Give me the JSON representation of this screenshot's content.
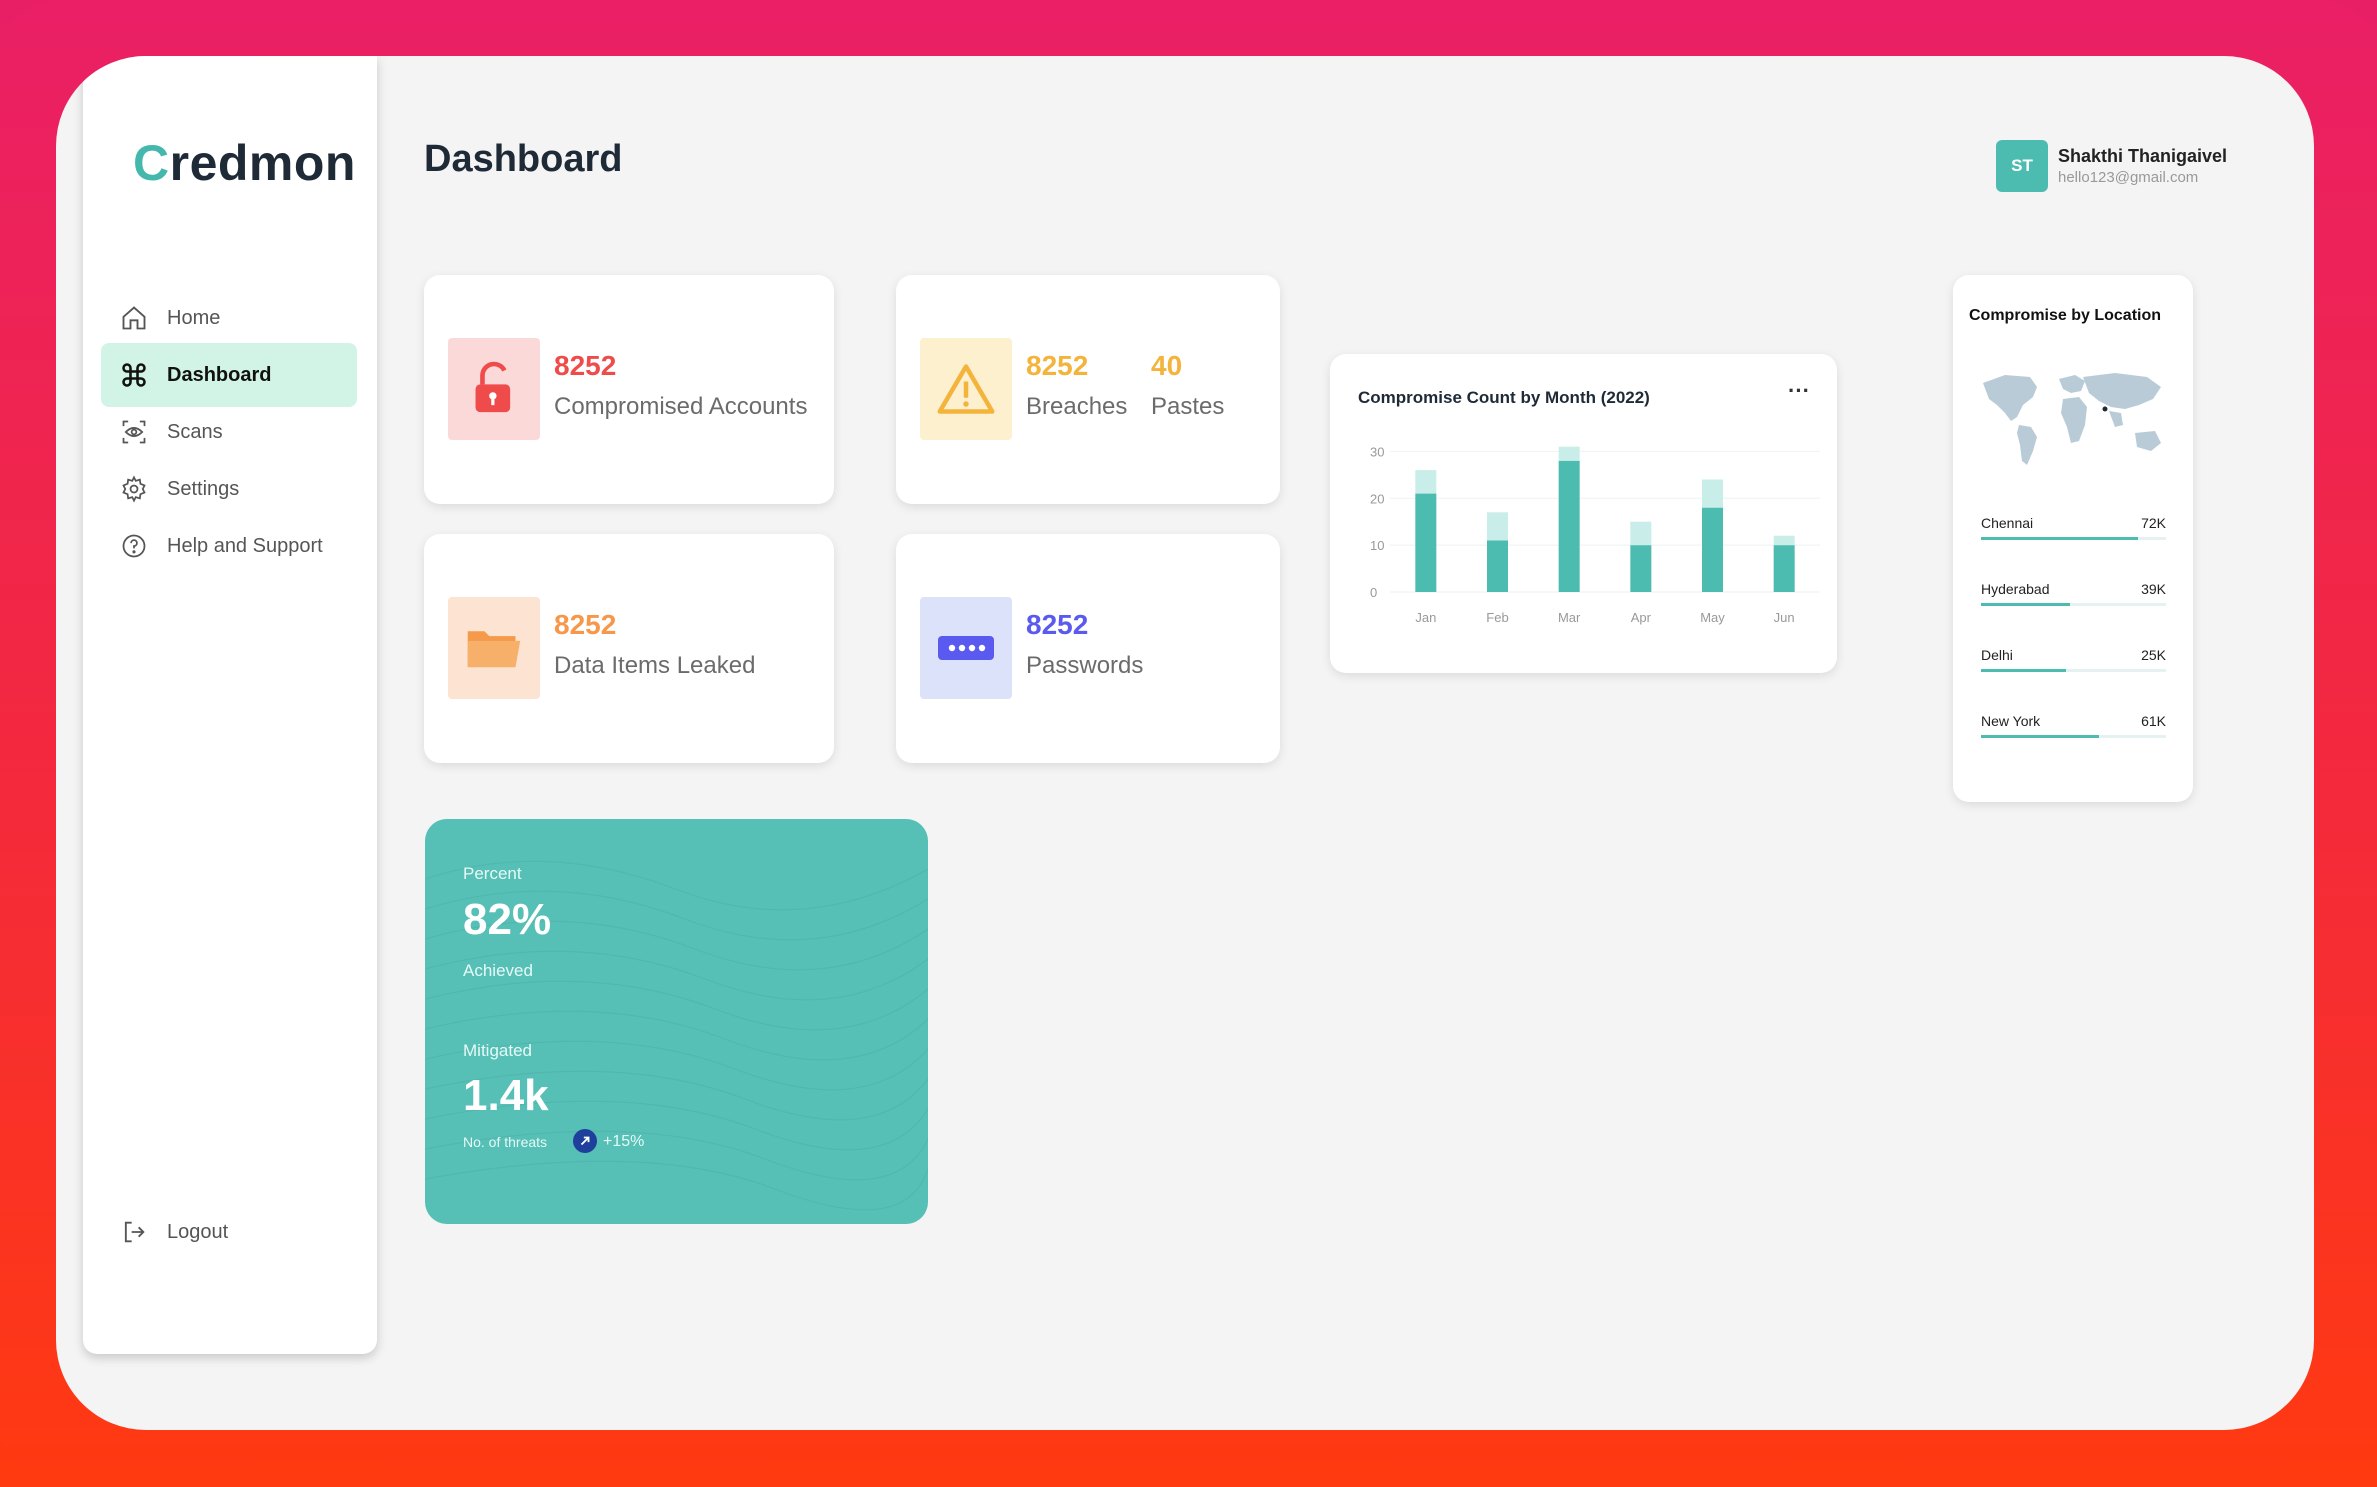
{
  "app": {
    "logo_first": "C",
    "logo_rest": "redmon"
  },
  "header": {
    "title": "Dashboard"
  },
  "user": {
    "initials": "ST",
    "name": "Shakthi Thanigaivel",
    "email": "hello123@gmail.com"
  },
  "sidebar": {
    "items": [
      {
        "label": "Home",
        "icon": "home-icon",
        "active": false
      },
      {
        "label": "Dashboard",
        "icon": "command-icon",
        "active": true
      },
      {
        "label": "Scans",
        "icon": "scan-eye-icon",
        "active": false
      },
      {
        "label": "Settings",
        "icon": "gear-icon",
        "active": false
      },
      {
        "label": "Help and Support",
        "icon": "help-icon",
        "active": false
      }
    ],
    "logout": {
      "label": "Logout",
      "icon": "logout-icon"
    }
  },
  "stats": {
    "compromised": {
      "value": "8252",
      "label": "Compromised Accounts",
      "icon": "unlock-icon",
      "color": "#ef4b4b"
    },
    "breaches": {
      "value": "8252",
      "label": "Breaches",
      "icon": "warning-icon",
      "color": "#f4b43c"
    },
    "pastes": {
      "value": "40",
      "label": "Pastes",
      "color": "#f4b43c"
    },
    "leaked": {
      "value": "8252",
      "label": "Data Items Leaked",
      "icon": "folder-icon",
      "color": "#f7974a"
    },
    "passwords": {
      "value": "8252",
      "label": "Passwords",
      "icon": "password-icon",
      "color": "#5a5af0"
    }
  },
  "progress_card": {
    "percent_label": "Percent",
    "percent_value": "82%",
    "achieved_label": "Achieved",
    "mitigated_label": "Mitigated",
    "mitigated_value": "1.4k",
    "threats_label": "No. of threats",
    "change": "+15%"
  },
  "chart_data": {
    "type": "bar",
    "title": "Compromise Count by Month (2022)",
    "categories": [
      "Jan",
      "Feb",
      "Mar",
      "Apr",
      "May",
      "Jun"
    ],
    "series": [
      {
        "values": [
          21,
          11,
          28,
          10,
          18,
          10
        ]
      },
      {
        "values": [
          5,
          6,
          3,
          5,
          6,
          2
        ]
      }
    ],
    "stacked": true,
    "yticks": [
      "0",
      "10",
      "20",
      "30"
    ],
    "ylim": [
      0,
      32
    ],
    "grid": true,
    "colors": [
      "#4dbcb0",
      "#c9ede8"
    ],
    "more_label": "···"
  },
  "locations": {
    "title": "Compromise by Location",
    "map_icon": "world-map-icon",
    "items": [
      {
        "name": "Chennai",
        "value": "72K",
        "fraction": 0.85
      },
      {
        "name": "Hyderabad",
        "value": "39K",
        "fraction": 0.48
      },
      {
        "name": "Delhi",
        "value": "25K",
        "fraction": 0.46
      },
      {
        "name": "New York",
        "value": "61K",
        "fraction": 0.64
      }
    ]
  }
}
